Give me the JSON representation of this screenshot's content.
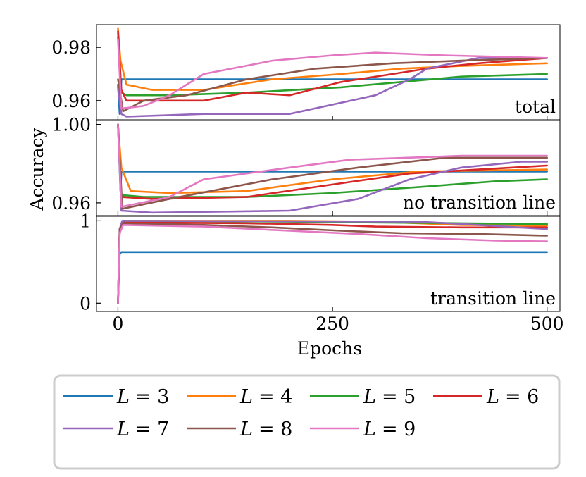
{
  "chart_data": {
    "type": "line",
    "xlabel": "Epochs",
    "ylabel": "Accuracy",
    "x_ticks": [
      0,
      250,
      500
    ],
    "xlim": [
      -25,
      515
    ],
    "legend_placement": "below",
    "series": [
      {
        "name": "L = 3",
        "label_var": "L",
        "label_eq": "= 3",
        "color": "#1f77b4"
      },
      {
        "name": "L = 4",
        "label_var": "L",
        "label_eq": "= 4",
        "color": "#ff7f0e"
      },
      {
        "name": "L = 5",
        "label_var": "L",
        "label_eq": "= 5",
        "color": "#2ca02c"
      },
      {
        "name": "L = 6",
        "label_var": "L",
        "label_eq": "= 6",
        "color": "#d62728"
      },
      {
        "name": "L = 7",
        "label_var": "L",
        "label_eq": "= 7",
        "color": "#9467bd"
      },
      {
        "name": "L = 8",
        "label_var": "L",
        "label_eq": "= 8",
        "color": "#8c564b"
      },
      {
        "name": "L = 9",
        "label_var": "L",
        "label_eq": "= 9",
        "color": "#e377c2"
      }
    ],
    "panels": [
      {
        "label": "total",
        "ylim": [
          0.9528,
          0.9885
        ],
        "y_ticks": [
          0.96,
          0.98
        ],
        "y_tick_labels": [
          "0.96",
          "0.98"
        ],
        "lines": [
          [
            [
              0,
              0.966
            ],
            [
              2,
              0.955
            ],
            [
              4,
              0.968
            ],
            [
              500,
              0.968
            ]
          ],
          [
            [
              0,
              0.987
            ],
            [
              3,
              0.975
            ],
            [
              10,
              0.966
            ],
            [
              40,
              0.964
            ],
            [
              100,
              0.964
            ],
            [
              180,
              0.968
            ],
            [
              260,
              0.97
            ],
            [
              330,
              0.972
            ],
            [
              400,
              0.973
            ],
            [
              500,
              0.974
            ]
          ],
          [
            [
              0,
              0.984
            ],
            [
              4,
              0.963
            ],
            [
              10,
              0.962
            ],
            [
              60,
              0.962
            ],
            [
              150,
              0.963
            ],
            [
              260,
              0.965
            ],
            [
              330,
              0.967
            ],
            [
              400,
              0.969
            ],
            [
              500,
              0.97
            ]
          ],
          [
            [
              0,
              0.986
            ],
            [
              4,
              0.964
            ],
            [
              10,
              0.96
            ],
            [
              100,
              0.96
            ],
            [
              150,
              0.963
            ],
            [
              200,
              0.962
            ],
            [
              260,
              0.967
            ],
            [
              320,
              0.97
            ],
            [
              360,
              0.972
            ],
            [
              420,
              0.974
            ],
            [
              500,
              0.976
            ]
          ],
          [
            [
              0,
              0.965
            ],
            [
              4,
              0.955
            ],
            [
              10,
              0.954
            ],
            [
              100,
              0.955
            ],
            [
              200,
              0.955
            ],
            [
              300,
              0.962
            ],
            [
              340,
              0.968
            ],
            [
              360,
              0.972
            ],
            [
              420,
              0.976
            ],
            [
              500,
              0.976
            ]
          ],
          [
            [
              0,
              0.968
            ],
            [
              6,
              0.956
            ],
            [
              30,
              0.96
            ],
            [
              80,
              0.962
            ],
            [
              150,
              0.968
            ],
            [
              230,
              0.972
            ],
            [
              320,
              0.974
            ],
            [
              400,
              0.975
            ],
            [
              500,
              0.976
            ]
          ],
          [
            [
              0,
              0.983
            ],
            [
              4,
              0.957
            ],
            [
              30,
              0.958
            ],
            [
              60,
              0.962
            ],
            [
              100,
              0.97
            ],
            [
              180,
              0.975
            ],
            [
              250,
              0.977
            ],
            [
              300,
              0.978
            ],
            [
              380,
              0.977
            ],
            [
              500,
              0.976
            ]
          ]
        ]
      },
      {
        "label": "no transition line",
        "ylim": [
          0.9535,
          1.002
        ],
        "y_ticks": [
          0.96,
          1.0
        ],
        "y_tick_labels": [
          "0.96",
          "1.00"
        ],
        "lines": [
          [
            [
              0,
              1.0
            ],
            [
              3,
              0.966
            ],
            [
              4,
              0.976
            ],
            [
              500,
              0.976
            ]
          ],
          [
            [
              0,
              1.0
            ],
            [
              4,
              0.978
            ],
            [
              15,
              0.966
            ],
            [
              60,
              0.965
            ],
            [
              150,
              0.966
            ],
            [
              250,
              0.972
            ],
            [
              350,
              0.976
            ],
            [
              500,
              0.977
            ]
          ],
          [
            [
              0,
              1.0
            ],
            [
              4,
              0.964
            ],
            [
              30,
              0.963
            ],
            [
              150,
              0.963
            ],
            [
              250,
              0.965
            ],
            [
              350,
              0.968
            ],
            [
              440,
              0.971
            ],
            [
              500,
              0.972
            ]
          ],
          [
            [
              0,
              1.0
            ],
            [
              4,
              0.963
            ],
            [
              40,
              0.962
            ],
            [
              150,
              0.963
            ],
            [
              260,
              0.97
            ],
            [
              340,
              0.975
            ],
            [
              420,
              0.977
            ],
            [
              500,
              0.979
            ]
          ],
          [
            [
              0,
              1.0
            ],
            [
              4,
              0.956
            ],
            [
              40,
              0.955
            ],
            [
              200,
              0.956
            ],
            [
              280,
              0.962
            ],
            [
              340,
              0.972
            ],
            [
              400,
              0.978
            ],
            [
              470,
              0.981
            ],
            [
              500,
              0.981
            ]
          ],
          [
            [
              0,
              1.0
            ],
            [
              5,
              0.957
            ],
            [
              60,
              0.962
            ],
            [
              180,
              0.972
            ],
            [
              280,
              0.978
            ],
            [
              380,
              0.983
            ],
            [
              460,
              0.983
            ],
            [
              500,
              0.983
            ]
          ],
          [
            [
              0,
              1.0
            ],
            [
              4,
              0.958
            ],
            [
              60,
              0.963
            ],
            [
              100,
              0.972
            ],
            [
              200,
              0.978
            ],
            [
              270,
              0.982
            ],
            [
              400,
              0.984
            ],
            [
              500,
              0.984
            ]
          ]
        ]
      },
      {
        "label": "transition line",
        "ylim": [
          -0.1,
          1.055
        ],
        "y_ticks": [
          0,
          1
        ],
        "y_tick_labels": [
          "0",
          "1"
        ],
        "lines": [
          [
            [
              0,
              0.0
            ],
            [
              1,
              0.3
            ],
            [
              2,
              0.6
            ],
            [
              4,
              0.62
            ],
            [
              500,
              0.62
            ]
          ],
          [
            [
              0,
              0.0
            ],
            [
              2,
              0.9
            ],
            [
              6,
              1.0
            ],
            [
              200,
              1.0
            ],
            [
              300,
              0.99
            ],
            [
              350,
              0.97
            ],
            [
              400,
              0.95
            ],
            [
              500,
              0.94
            ]
          ],
          [
            [
              0,
              0.0
            ],
            [
              2,
              0.9
            ],
            [
              6,
              1.0
            ],
            [
              200,
              0.99
            ],
            [
              300,
              0.98
            ],
            [
              400,
              0.97
            ],
            [
              500,
              0.96
            ]
          ],
          [
            [
              0,
              0.0
            ],
            [
              2,
              0.9
            ],
            [
              6,
              0.98
            ],
            [
              150,
              0.97
            ],
            [
              250,
              0.95
            ],
            [
              300,
              0.93
            ],
            [
              400,
              0.92
            ],
            [
              500,
              0.92
            ]
          ],
          [
            [
              0,
              0.0
            ],
            [
              2,
              0.9
            ],
            [
              5,
              1.0
            ],
            [
              350,
              0.99
            ],
            [
              420,
              0.95
            ],
            [
              500,
              0.9
            ]
          ],
          [
            [
              0,
              0.0
            ],
            [
              2,
              0.9
            ],
            [
              6,
              0.97
            ],
            [
              100,
              0.95
            ],
            [
              180,
              0.92
            ],
            [
              260,
              0.88
            ],
            [
              330,
              0.85
            ],
            [
              420,
              0.84
            ],
            [
              500,
              0.82
            ]
          ],
          [
            [
              0,
              0.0
            ],
            [
              2,
              0.85
            ],
            [
              6,
              0.95
            ],
            [
              100,
              0.93
            ],
            [
              200,
              0.88
            ],
            [
              280,
              0.84
            ],
            [
              360,
              0.79
            ],
            [
              440,
              0.76
            ],
            [
              500,
              0.75
            ]
          ]
        ]
      }
    ]
  }
}
